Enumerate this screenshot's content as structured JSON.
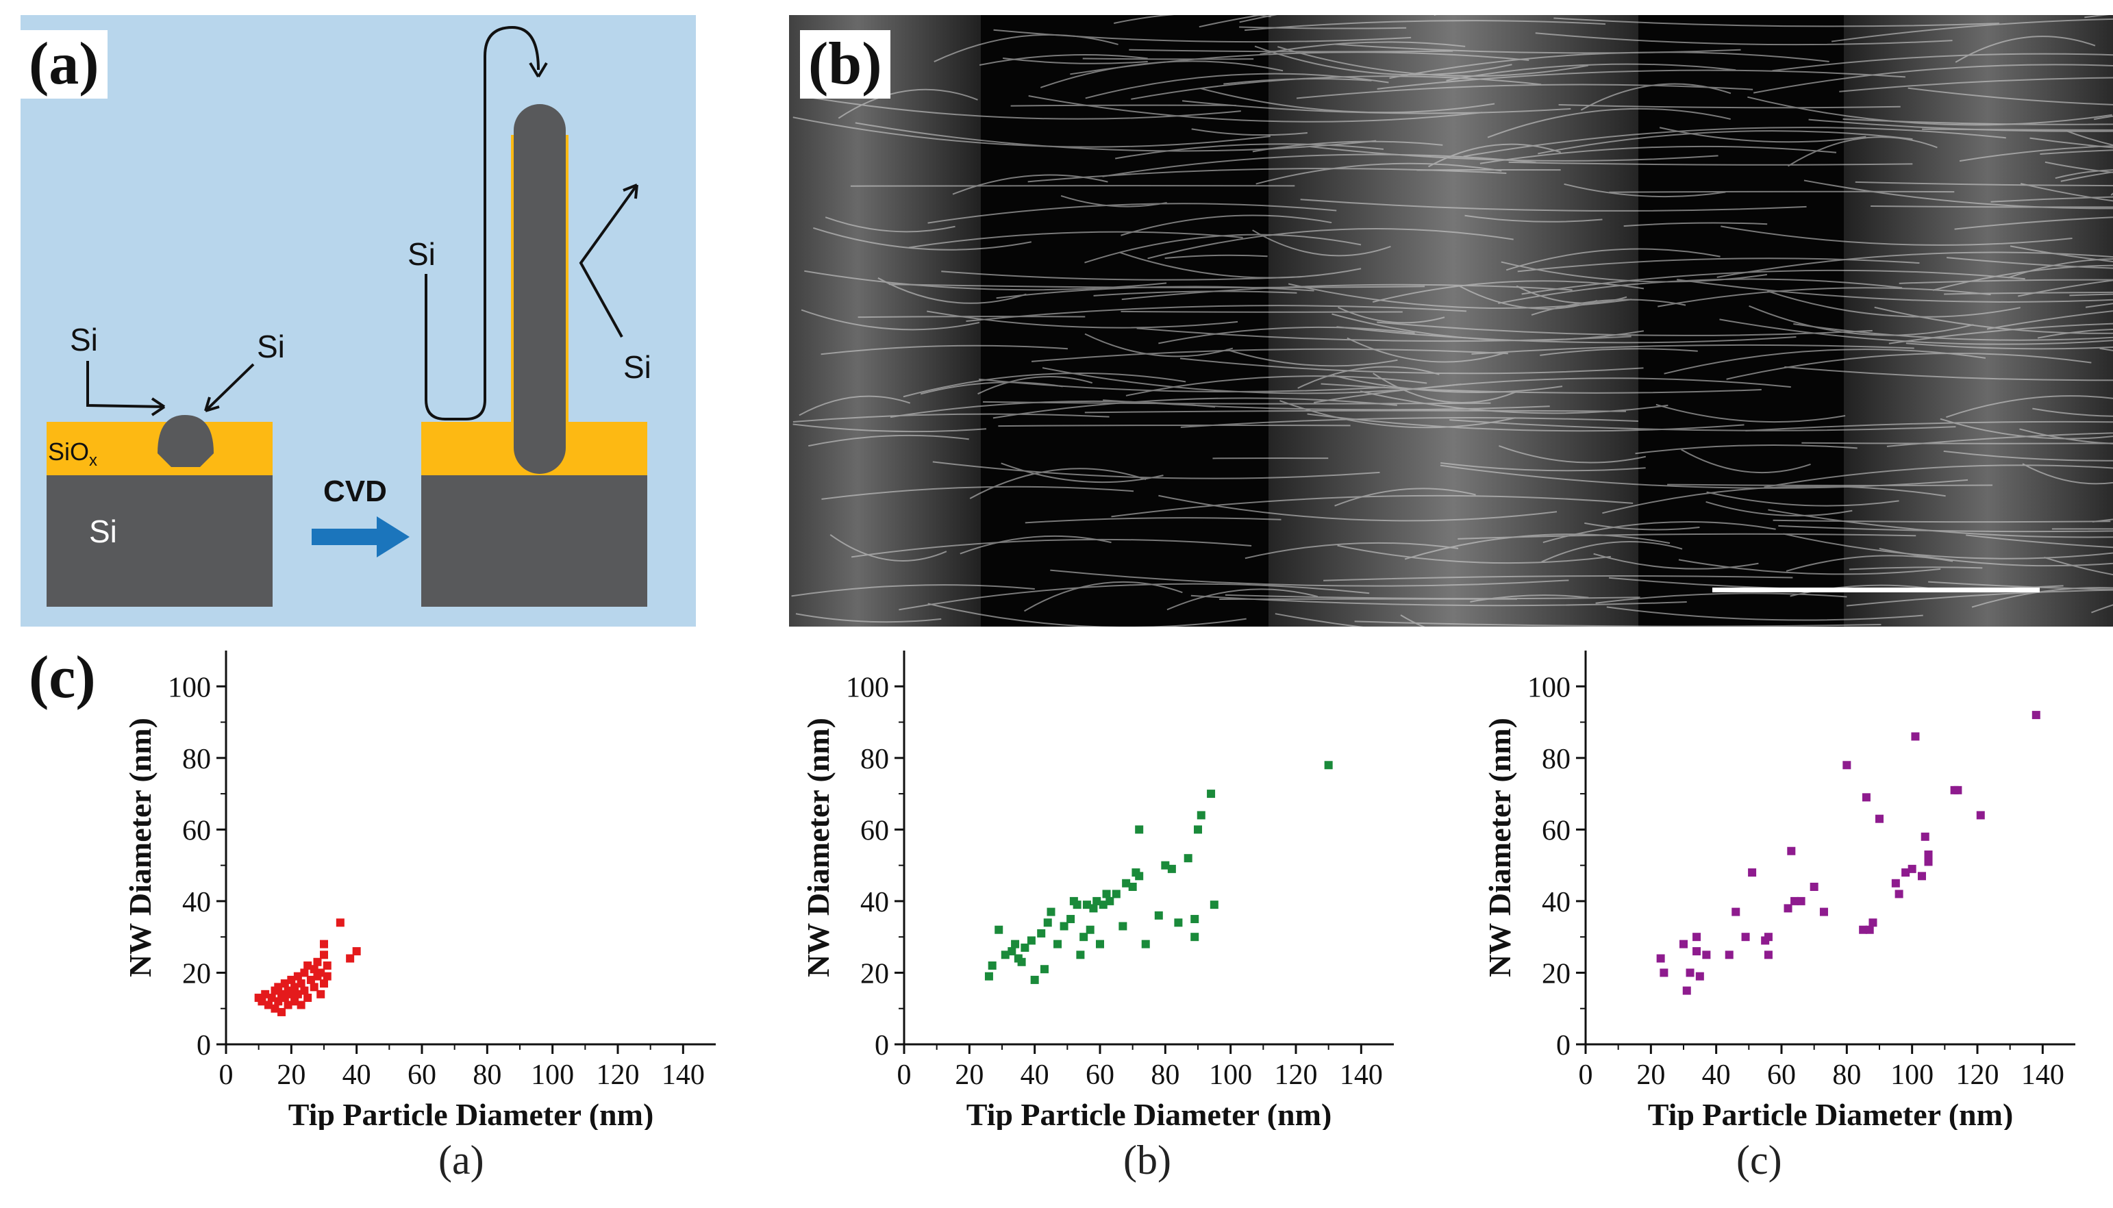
{
  "figure": {
    "panel_labels": {
      "a": "(a)",
      "b": "(b)",
      "c": "(c)"
    },
    "sub_captions": [
      "(a)",
      "(b)",
      "(c)"
    ],
    "colors": {
      "schematic_bg": "#b8d6ec",
      "oxide": "#fdb913",
      "silicon": "#58595b",
      "arrow": "#1b75bc",
      "series_a": "#e41a1c",
      "series_b": "#1a8a3a",
      "series_c": "#8e1b8e"
    }
  },
  "schematic": {
    "oxide_label": "SiO",
    "oxide_sub": "x",
    "substrate_label": "Si",
    "process_label": "CVD",
    "si_labels": [
      "Si",
      "Si",
      "Si",
      "Si"
    ]
  },
  "sem": {
    "image_name": "SEM micrograph of Si nanowire bands"
  },
  "chart_data": [
    {
      "type": "scatter",
      "title": "",
      "xlabel": "Tip Particle Diameter (nm)",
      "ylabel": "NW Diameter (nm)",
      "xlim": [
        0,
        150
      ],
      "ylim": [
        0,
        110
      ],
      "xticks": [
        0,
        20,
        40,
        60,
        80,
        100,
        120,
        140
      ],
      "yticks": [
        0,
        20,
        40,
        60,
        80,
        100
      ],
      "series": [
        {
          "name": "a",
          "points": [
            [
              10,
              13
            ],
            [
              11,
              12
            ],
            [
              12,
              14
            ],
            [
              13,
              11
            ],
            [
              14,
              13
            ],
            [
              15,
              10
            ],
            [
              15,
              15
            ],
            [
              16,
              12
            ],
            [
              16,
              16
            ],
            [
              17,
              9
            ],
            [
              17,
              14
            ],
            [
              18,
              13
            ],
            [
              18,
              17
            ],
            [
              19,
              11
            ],
            [
              19,
              15
            ],
            [
              20,
              14
            ],
            [
              20,
              18
            ],
            [
              21,
              12
            ],
            [
              21,
              16
            ],
            [
              22,
              19
            ],
            [
              22,
              14
            ],
            [
              23,
              11
            ],
            [
              23,
              17
            ],
            [
              24,
              20
            ],
            [
              24,
              15
            ],
            [
              25,
              13
            ],
            [
              25,
              22
            ],
            [
              26,
              18
            ],
            [
              27,
              16
            ],
            [
              27,
              21
            ],
            [
              28,
              19
            ],
            [
              28,
              23
            ],
            [
              29,
              14
            ],
            [
              29,
              20
            ],
            [
              30,
              17
            ],
            [
              30,
              25
            ],
            [
              30,
              28
            ],
            [
              31,
              22
            ],
            [
              31,
              19
            ],
            [
              35,
              34
            ],
            [
              38,
              24
            ],
            [
              40,
              26
            ]
          ]
        }
      ]
    },
    {
      "type": "scatter",
      "title": "",
      "xlabel": "Tip Particle Diameter (nm)",
      "ylabel": "NW Diameter (nm)",
      "xlim": [
        0,
        150
      ],
      "ylim": [
        0,
        110
      ],
      "xticks": [
        0,
        20,
        40,
        60,
        80,
        100,
        120,
        140
      ],
      "yticks": [
        0,
        20,
        40,
        60,
        80,
        100
      ],
      "series": [
        {
          "name": "b",
          "points": [
            [
              26,
              19
            ],
            [
              27,
              22
            ],
            [
              29,
              32
            ],
            [
              31,
              25
            ],
            [
              33,
              26
            ],
            [
              34,
              28
            ],
            [
              35,
              24
            ],
            [
              36,
              23
            ],
            [
              37,
              27
            ],
            [
              39,
              29
            ],
            [
              40,
              18
            ],
            [
              42,
              31
            ],
            [
              43,
              21
            ],
            [
              44,
              34
            ],
            [
              45,
              37
            ],
            [
              47,
              28
            ],
            [
              49,
              33
            ],
            [
              51,
              35
            ],
            [
              52,
              40
            ],
            [
              53,
              39
            ],
            [
              54,
              25
            ],
            [
              55,
              30
            ],
            [
              56,
              39
            ],
            [
              57,
              32
            ],
            [
              58,
              38
            ],
            [
              59,
              40
            ],
            [
              60,
              28
            ],
            [
              61,
              39
            ],
            [
              62,
              42
            ],
            [
              63,
              40
            ],
            [
              65,
              42
            ],
            [
              67,
              33
            ],
            [
              68,
              45
            ],
            [
              70,
              44
            ],
            [
              71,
              48
            ],
            [
              72,
              60
            ],
            [
              72,
              47
            ],
            [
              74,
              28
            ],
            [
              78,
              36
            ],
            [
              80,
              50
            ],
            [
              82,
              49
            ],
            [
              84,
              34
            ],
            [
              87,
              52
            ],
            [
              89,
              30
            ],
            [
              89,
              35
            ],
            [
              90,
              60
            ],
            [
              91,
              64
            ],
            [
              94,
              70
            ],
            [
              95,
              39
            ],
            [
              130,
              78
            ]
          ]
        }
      ]
    },
    {
      "type": "scatter",
      "title": "",
      "xlabel": "Tip Particle Diameter (nm)",
      "ylabel": "NW Diameter (nm)",
      "xlim": [
        0,
        150
      ],
      "ylim": [
        0,
        110
      ],
      "xticks": [
        0,
        20,
        40,
        60,
        80,
        100,
        120,
        140
      ],
      "yticks": [
        0,
        20,
        40,
        60,
        80,
        100
      ],
      "series": [
        {
          "name": "c",
          "points": [
            [
              23,
              24
            ],
            [
              24,
              20
            ],
            [
              30,
              28
            ],
            [
              31,
              15
            ],
            [
              32,
              20
            ],
            [
              34,
              26
            ],
            [
              34,
              30
            ],
            [
              35,
              19
            ],
            [
              37,
              25
            ],
            [
              44,
              25
            ],
            [
              46,
              37
            ],
            [
              49,
              30
            ],
            [
              51,
              48
            ],
            [
              55,
              29
            ],
            [
              56,
              30
            ],
            [
              56,
              25
            ],
            [
              62,
              38
            ],
            [
              63,
              54
            ],
            [
              64,
              40
            ],
            [
              66,
              40
            ],
            [
              70,
              44
            ],
            [
              73,
              37
            ],
            [
              80,
              78
            ],
            [
              85,
              32
            ],
            [
              86,
              69
            ],
            [
              87,
              32
            ],
            [
              88,
              34
            ],
            [
              90,
              63
            ],
            [
              95,
              45
            ],
            [
              96,
              42
            ],
            [
              98,
              48
            ],
            [
              100,
              49
            ],
            [
              101,
              86
            ],
            [
              103,
              47
            ],
            [
              104,
              58
            ],
            [
              105,
              51
            ],
            [
              105,
              53
            ],
            [
              113,
              71
            ],
            [
              114,
              71
            ],
            [
              121,
              64
            ],
            [
              138,
              92
            ]
          ]
        }
      ]
    }
  ]
}
